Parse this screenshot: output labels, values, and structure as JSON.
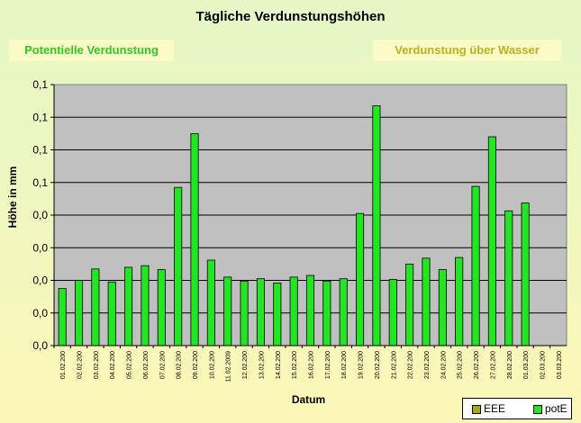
{
  "header": {
    "title": "Tägliche Verdunstungshöhen",
    "btn_potential": "Potentielle Verdunstung",
    "btn_water": "Verdunstung über Wasser"
  },
  "chart_data": {
    "type": "bar",
    "title": "Tägliche Verdunstungshöhen",
    "xlabel": "Datum",
    "ylabel": "Höhe in mm",
    "y_tick_labels": [
      "0,1",
      "0,1",
      "0,1",
      "0,1",
      "0,0",
      "0,0",
      "0,0",
      "0,0",
      "0,0"
    ],
    "ylim": [
      0,
      8
    ],
    "grid": true,
    "legend_position": "bottom-right",
    "categories": [
      "01.02.200",
      "02.02.200",
      "03.02.200",
      "04.02.200",
      "05.02.200",
      "06.02.200",
      "07.02.200",
      "08.02.200",
      "09.02.200",
      "10.02.200",
      "11.02.2009",
      "12.02.200",
      "13.02.200",
      "14.02.200",
      "15.02.200",
      "16.02.200",
      "17.02.200",
      "18.02.200",
      "19.02.200",
      "20.02.200",
      "21.02.200",
      "22.02.200",
      "23.02.200",
      "24.02.200",
      "25.02.200",
      "26.02.200",
      "27.02.200",
      "28.02.200",
      "01.03.200",
      "02.03.200",
      "03.03.200"
    ],
    "series": [
      {
        "name": "EEE",
        "color": "#a7a70e",
        "values": [
          0,
          0,
          0,
          0,
          0,
          0,
          0,
          0,
          0,
          0,
          0,
          0,
          0,
          0,
          0,
          0,
          0,
          0,
          0,
          0,
          0,
          0,
          0,
          0,
          0,
          0,
          0,
          0,
          0,
          0,
          0
        ]
      },
      {
        "name": "potE",
        "color": "#22e622",
        "values": [
          1.75,
          2.0,
          2.35,
          1.95,
          2.4,
          2.45,
          2.33,
          4.85,
          6.5,
          2.62,
          2.1,
          1.98,
          2.05,
          1.92,
          2.1,
          2.15,
          1.98,
          2.05,
          4.05,
          7.35,
          2.03,
          2.5,
          2.68,
          2.33,
          2.7,
          4.88,
          6.4,
          4.13,
          4.37,
          0,
          0
        ]
      }
    ]
  }
}
